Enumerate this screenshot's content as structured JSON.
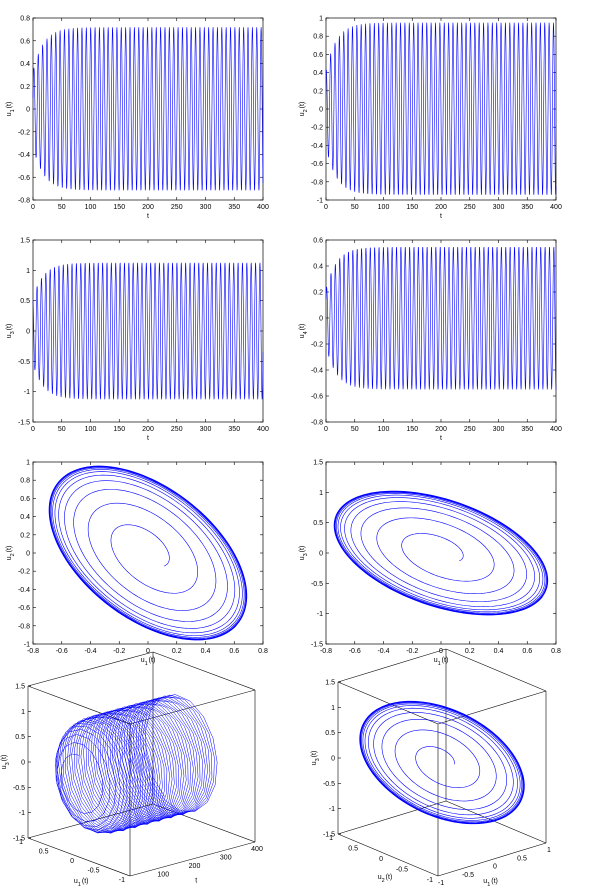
{
  "colors": {
    "line": "#0000ff",
    "axis": "#000000",
    "background": "#ffffff"
  },
  "chart_data": [
    {
      "type": "line",
      "subtype": "damped-growth-oscillation",
      "xlabel": "t",
      "ylabel": {
        "main": "u",
        "sub": "1",
        "tail": "(t)"
      },
      "xlim": [
        0,
        400
      ],
      "ylim": [
        -0.8,
        0.8
      ],
      "xticks": [
        0,
        50,
        100,
        150,
        200,
        250,
        300,
        350,
        400
      ],
      "yticks": [
        -0.8,
        -0.6,
        -0.4,
        -0.2,
        0,
        0.2,
        0.4,
        0.6,
        0.8
      ],
      "series": [
        {
          "amplitude_start": 0.33,
          "amplitude_steady": 0.72,
          "growth_time": 18,
          "period": 7.6,
          "phase": 0.3
        }
      ]
    },
    {
      "type": "line",
      "subtype": "damped-growth-oscillation",
      "xlabel": "t",
      "ylabel": {
        "main": "u",
        "sub": "2",
        "tail": "(t)"
      },
      "xlim": [
        0,
        400
      ],
      "ylim": [
        -1,
        1
      ],
      "xticks": [
        0,
        50,
        100,
        150,
        200,
        250,
        300,
        350,
        400
      ],
      "yticks": [
        -1,
        -0.8,
        -0.6,
        -0.4,
        -0.2,
        0,
        0.2,
        0.4,
        0.6,
        0.8,
        1
      ],
      "series": [
        {
          "amplitude_start": 0.42,
          "amplitude_steady": 0.95,
          "growth_time": 18,
          "period": 7.6,
          "phase": 1.2
        }
      ]
    },
    {
      "type": "line",
      "subtype": "damped-growth-oscillation",
      "xlabel": "t",
      "ylabel": {
        "main": "u",
        "sub": "3",
        "tail": "(t)"
      },
      "xlim": [
        0,
        400
      ],
      "ylim": [
        -1.5,
        1.5
      ],
      "xticks": [
        0,
        50,
        100,
        150,
        200,
        250,
        300,
        350,
        400
      ],
      "yticks": [
        -1.5,
        -1,
        -0.5,
        0,
        0.5,
        1,
        1.5
      ],
      "series": [
        {
          "amplitude_start": 0.55,
          "amplitude_steady": 1.13,
          "growth_time": 18,
          "period": 7.6,
          "phase": 2.0
        }
      ]
    },
    {
      "type": "line",
      "subtype": "damped-growth-oscillation",
      "xlabel": "t",
      "ylabel": {
        "main": "u",
        "sub": "4",
        "tail": "(t)"
      },
      "xlim": [
        0,
        400
      ],
      "ylim": [
        -0.8,
        0.6
      ],
      "xticks": [
        0,
        50,
        100,
        150,
        200,
        250,
        300,
        350,
        400
      ],
      "yticks": [
        -0.8,
        -0.6,
        -0.4,
        -0.2,
        0,
        0.2,
        0.4,
        0.6
      ],
      "series": [
        {
          "amplitude_start": 0.22,
          "amplitude_steady": 0.55,
          "growth_time": 18,
          "period": 7.6,
          "phase": 0.7
        }
      ]
    },
    {
      "type": "line",
      "subtype": "phase-portrait",
      "xlabel": {
        "main": "u",
        "sub": "1",
        "tail": "(t)"
      },
      "ylabel": {
        "main": "u",
        "sub": "2",
        "tail": "(t)"
      },
      "xlim": [
        -0.8,
        0.8
      ],
      "ylim": [
        -1,
        1
      ],
      "xticks": [
        -0.8,
        -0.6,
        -0.4,
        -0.2,
        0,
        0.2,
        0.4,
        0.6,
        0.8
      ],
      "yticks": [
        -1,
        -0.8,
        -0.6,
        -0.4,
        -0.2,
        0,
        0.2,
        0.4,
        0.6,
        0.8,
        1
      ],
      "series": [
        {
          "semi_major": 0.98,
          "semi_minor": 0.55,
          "tilt_deg": -41,
          "limit_scale": [
            0.72,
            0.95
          ],
          "turns": 12
        }
      ]
    },
    {
      "type": "line",
      "subtype": "phase-portrait",
      "xlabel": {
        "main": "u",
        "sub": "1",
        "tail": "(t)"
      },
      "ylabel": {
        "main": "u",
        "sub": "3",
        "tail": "(t)"
      },
      "xlim": [
        -0.8,
        0.8
      ],
      "ylim": [
        -1.5,
        1.5
      ],
      "xticks": [
        -0.8,
        -0.6,
        -0.4,
        -0.2,
        0,
        0.2,
        0.4,
        0.6,
        0.8
      ],
      "yticks": [
        -1.5,
        -1,
        -0.5,
        0,
        0.5,
        1,
        1.5
      ],
      "series": [
        {
          "semi_major": 1.0,
          "semi_minor": 0.62,
          "tilt_deg": -30,
          "limit_scale": [
            0.72,
            1.13
          ],
          "turns": 12
        }
      ]
    },
    {
      "type": "line",
      "subtype": "3d-trajectory",
      "xlabel": "t",
      "ylabel": {
        "main": "u",
        "sub": "1",
        "tail": "(t)"
      },
      "zlabel": {
        "main": "u",
        "sub": "3",
        "tail": "(t)"
      },
      "xlim": [
        0,
        400
      ],
      "ylim": [
        -1,
        1
      ],
      "zlim": [
        -1.5,
        1.5
      ],
      "xticks": [
        100,
        200,
        300,
        400
      ],
      "yticks": [
        -1,
        -0.5,
        0,
        0.5,
        1
      ],
      "zticks": [
        -1.5,
        -1,
        -0.5,
        0,
        0.5,
        1,
        1.5
      ],
      "series": [
        {
          "u1_amplitude": 0.72,
          "u3_amplitude": 1.13,
          "period": 7.6
        }
      ]
    },
    {
      "type": "line",
      "subtype": "3d-trajectory",
      "xlabel": {
        "main": "u",
        "sub": "1",
        "tail": "(t)"
      },
      "ylabel": {
        "main": "u",
        "sub": "2",
        "tail": "(t)"
      },
      "zlabel": {
        "main": "u",
        "sub": "3",
        "tail": "(t)"
      },
      "xlim": [
        -1,
        1
      ],
      "ylim": [
        -1,
        1
      ],
      "zlim": [
        -1.5,
        1.5
      ],
      "xticks": [
        -1,
        -0.5,
        0,
        0.5,
        1
      ],
      "yticks": [
        -1,
        -0.5,
        0,
        0.5,
        1
      ],
      "zticks": [
        -1.5,
        -1,
        -0.5,
        0,
        0.5,
        1,
        1.5
      ],
      "series": [
        {
          "u1_amplitude": 0.72,
          "u2_amplitude": 0.95,
          "u3_amplitude": 1.13
        }
      ]
    }
  ]
}
